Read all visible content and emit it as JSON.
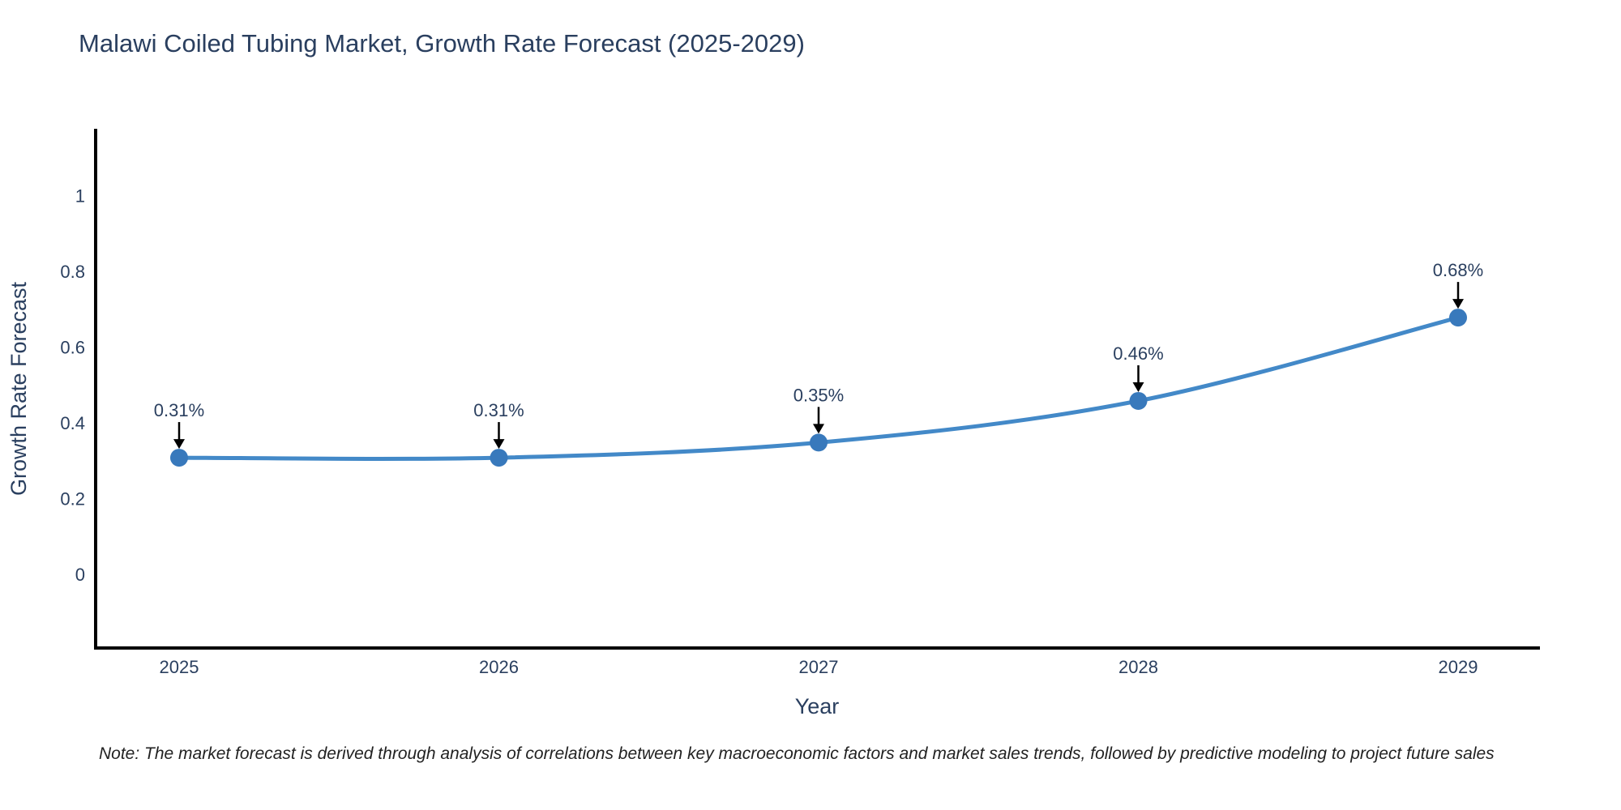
{
  "page": {
    "title": "Malawi Coiled Tubing Market, Growth Rate Forecast (2025-2029)",
    "note": "Note: The market forecast is derived through analysis of correlations between key macroeconomic factors and market sales trends, followed by predictive modeling to project future sales"
  },
  "chart_data": {
    "type": "line",
    "title": "Malawi Coiled Tubing Market, Growth Rate Forecast (2025-2029)",
    "xlabel": "Year",
    "ylabel": "Growth Rate Forecast",
    "categories": [
      "2025",
      "2026",
      "2027",
      "2028",
      "2029"
    ],
    "series": [
      {
        "name": "Growth Rate Forecast",
        "values": [
          0.31,
          0.31,
          0.35,
          0.46,
          0.68
        ],
        "point_labels": [
          "0.31%",
          "0.31%",
          "0.35%",
          "0.46%",
          "0.68%"
        ]
      }
    ],
    "y_ticks": [
      0,
      0.2,
      0.4,
      0.6,
      0.8,
      1
    ],
    "ylim": [
      -0.19,
      1.18
    ],
    "grid": false,
    "legend": false,
    "line_shape": "spline",
    "annotation_arrows": true,
    "colors": {
      "line": "#4389c8",
      "marker": "#3879bc",
      "axis": "#000000",
      "tick_text": "#2a3f5f",
      "axis_title_text": "#2a3f5f",
      "annotation_text": "#2a3f5f",
      "arrow": "#000000",
      "title_text": "#2a3f5f",
      "note_text": "#222222",
      "background": "#ffffff"
    }
  }
}
